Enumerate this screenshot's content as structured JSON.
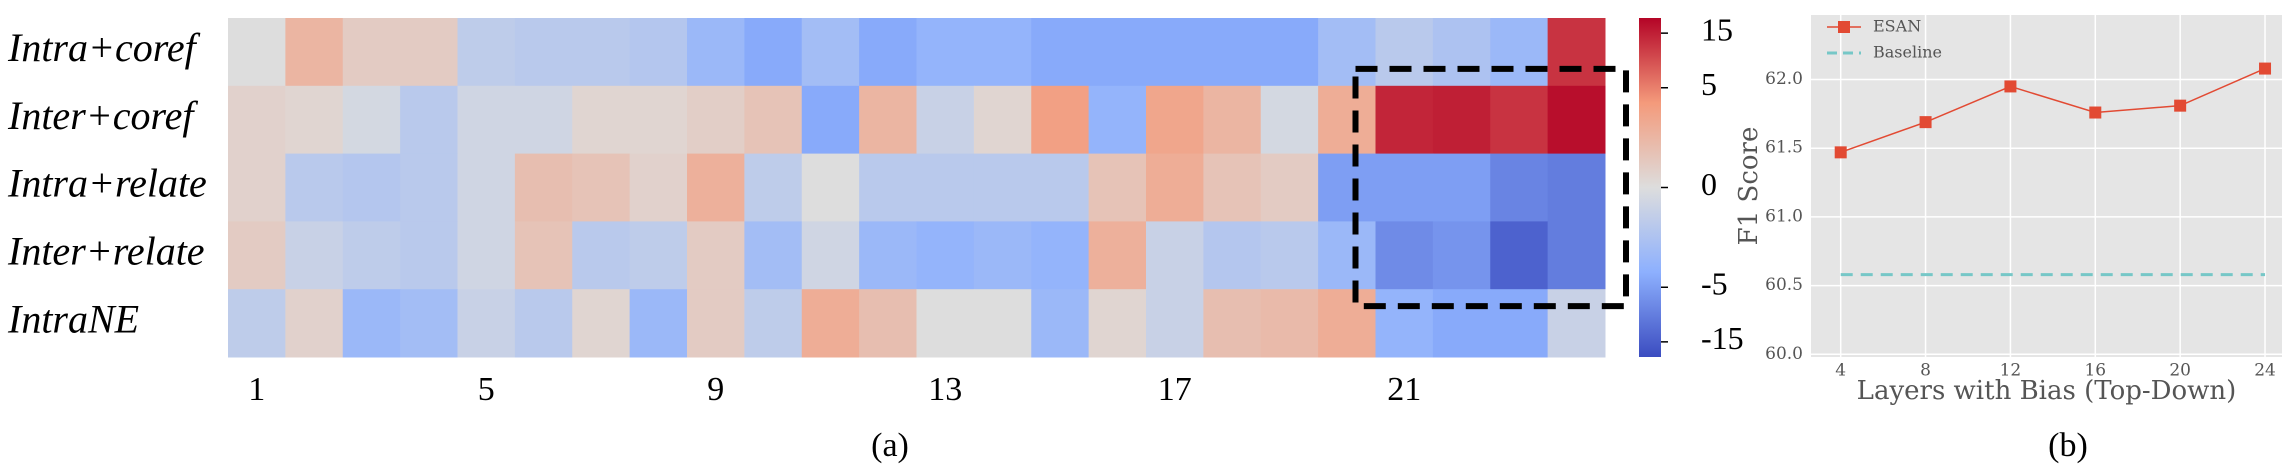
{
  "chart_data": [
    {
      "type": "heatmap",
      "caption": "(a)",
      "scale": "symlog",
      "colormap": "coolwarm",
      "rows": [
        "Intra+coref",
        "Inter+coref",
        "Intra+relate",
        "Inter+relate",
        "IntraNE"
      ],
      "categories": [
        1,
        null,
        null,
        null,
        5,
        null,
        null,
        null,
        9,
        null,
        null,
        null,
        13,
        null,
        null,
        null,
        17,
        null,
        null,
        null,
        21,
        null,
        null,
        null
      ],
      "values": [
        [
          0,
          1.5,
          0.5,
          0.5,
          -0.8,
          -1,
          -1,
          -1.2,
          -2.5,
          -4,
          -2,
          -4,
          -3,
          -3,
          -4,
          -4,
          -4,
          -4,
          -4,
          -2,
          -1,
          -1.5,
          -2.5,
          12
        ],
        [
          0.3,
          0.2,
          -0.2,
          -1,
          -0.3,
          -0.3,
          0.2,
          0.2,
          0.4,
          0.8,
          -4,
          1.5,
          -0.5,
          0.2,
          3,
          -3,
          2.5,
          1.5,
          -0.2,
          2,
          14,
          15,
          12,
          18
        ],
        [
          0.3,
          -1,
          -1.2,
          -1,
          -0.3,
          1,
          0.8,
          0.3,
          1.8,
          -0.8,
          0,
          -1,
          -1,
          -1,
          -1,
          0.8,
          2,
          0.8,
          0.5,
          -5,
          -5,
          -5,
          -8,
          -9
        ],
        [
          0.5,
          -0.5,
          -0.8,
          -1,
          -0.3,
          0.8,
          -1,
          -0.8,
          0.5,
          -2,
          -0.3,
          -2.5,
          -3,
          -2.5,
          -3,
          1.8,
          -0.5,
          -1.2,
          -1,
          -2.5,
          -7,
          -6,
          -14,
          -9
        ],
        [
          -0.8,
          0.3,
          -2.5,
          -2,
          -0.5,
          -1,
          0.2,
          -2.5,
          0.5,
          -0.8,
          2,
          1,
          0,
          0,
          -2.5,
          0.2,
          -0.5,
          1,
          1.2,
          2,
          -3,
          -4,
          -4,
          -0.5
        ]
      ],
      "vlim": [
        -20,
        20
      ],
      "colorbar_ticks": [
        15,
        5,
        0,
        -5,
        -15
      ]
    },
    {
      "type": "line",
      "caption": "(b)",
      "xlabel": "Layers with Bias (Top-Down)",
      "ylabel": "F1 Score",
      "x": [
        4,
        8,
        12,
        16,
        20,
        24
      ],
      "series": [
        {
          "name": "ESAN",
          "color": "#e24a33",
          "marker": "square",
          "values": [
            61.47,
            61.69,
            61.95,
            61.76,
            61.81,
            62.08
          ]
        },
        {
          "name": "Baseline",
          "color": "#76c7c7",
          "dashed": true,
          "values": [
            60.58,
            60.58,
            60.58,
            60.58,
            60.58,
            60.58
          ]
        }
      ],
      "xlim": [
        2.6,
        24.8
      ],
      "ylim": [
        59.98,
        62.47
      ],
      "xticks": [
        4,
        8,
        12,
        16,
        20,
        24
      ],
      "yticks": [
        {
          "value": 60,
          "label": "60.0"
        },
        {
          "value": 60.5,
          "label": "60.5"
        },
        {
          "value": 61,
          "label": "61.0"
        },
        {
          "value": 61.5,
          "label": "61.5"
        },
        {
          "value": 62,
          "label": "62.0"
        }
      ],
      "grid": true,
      "legend": "upper left"
    }
  ]
}
